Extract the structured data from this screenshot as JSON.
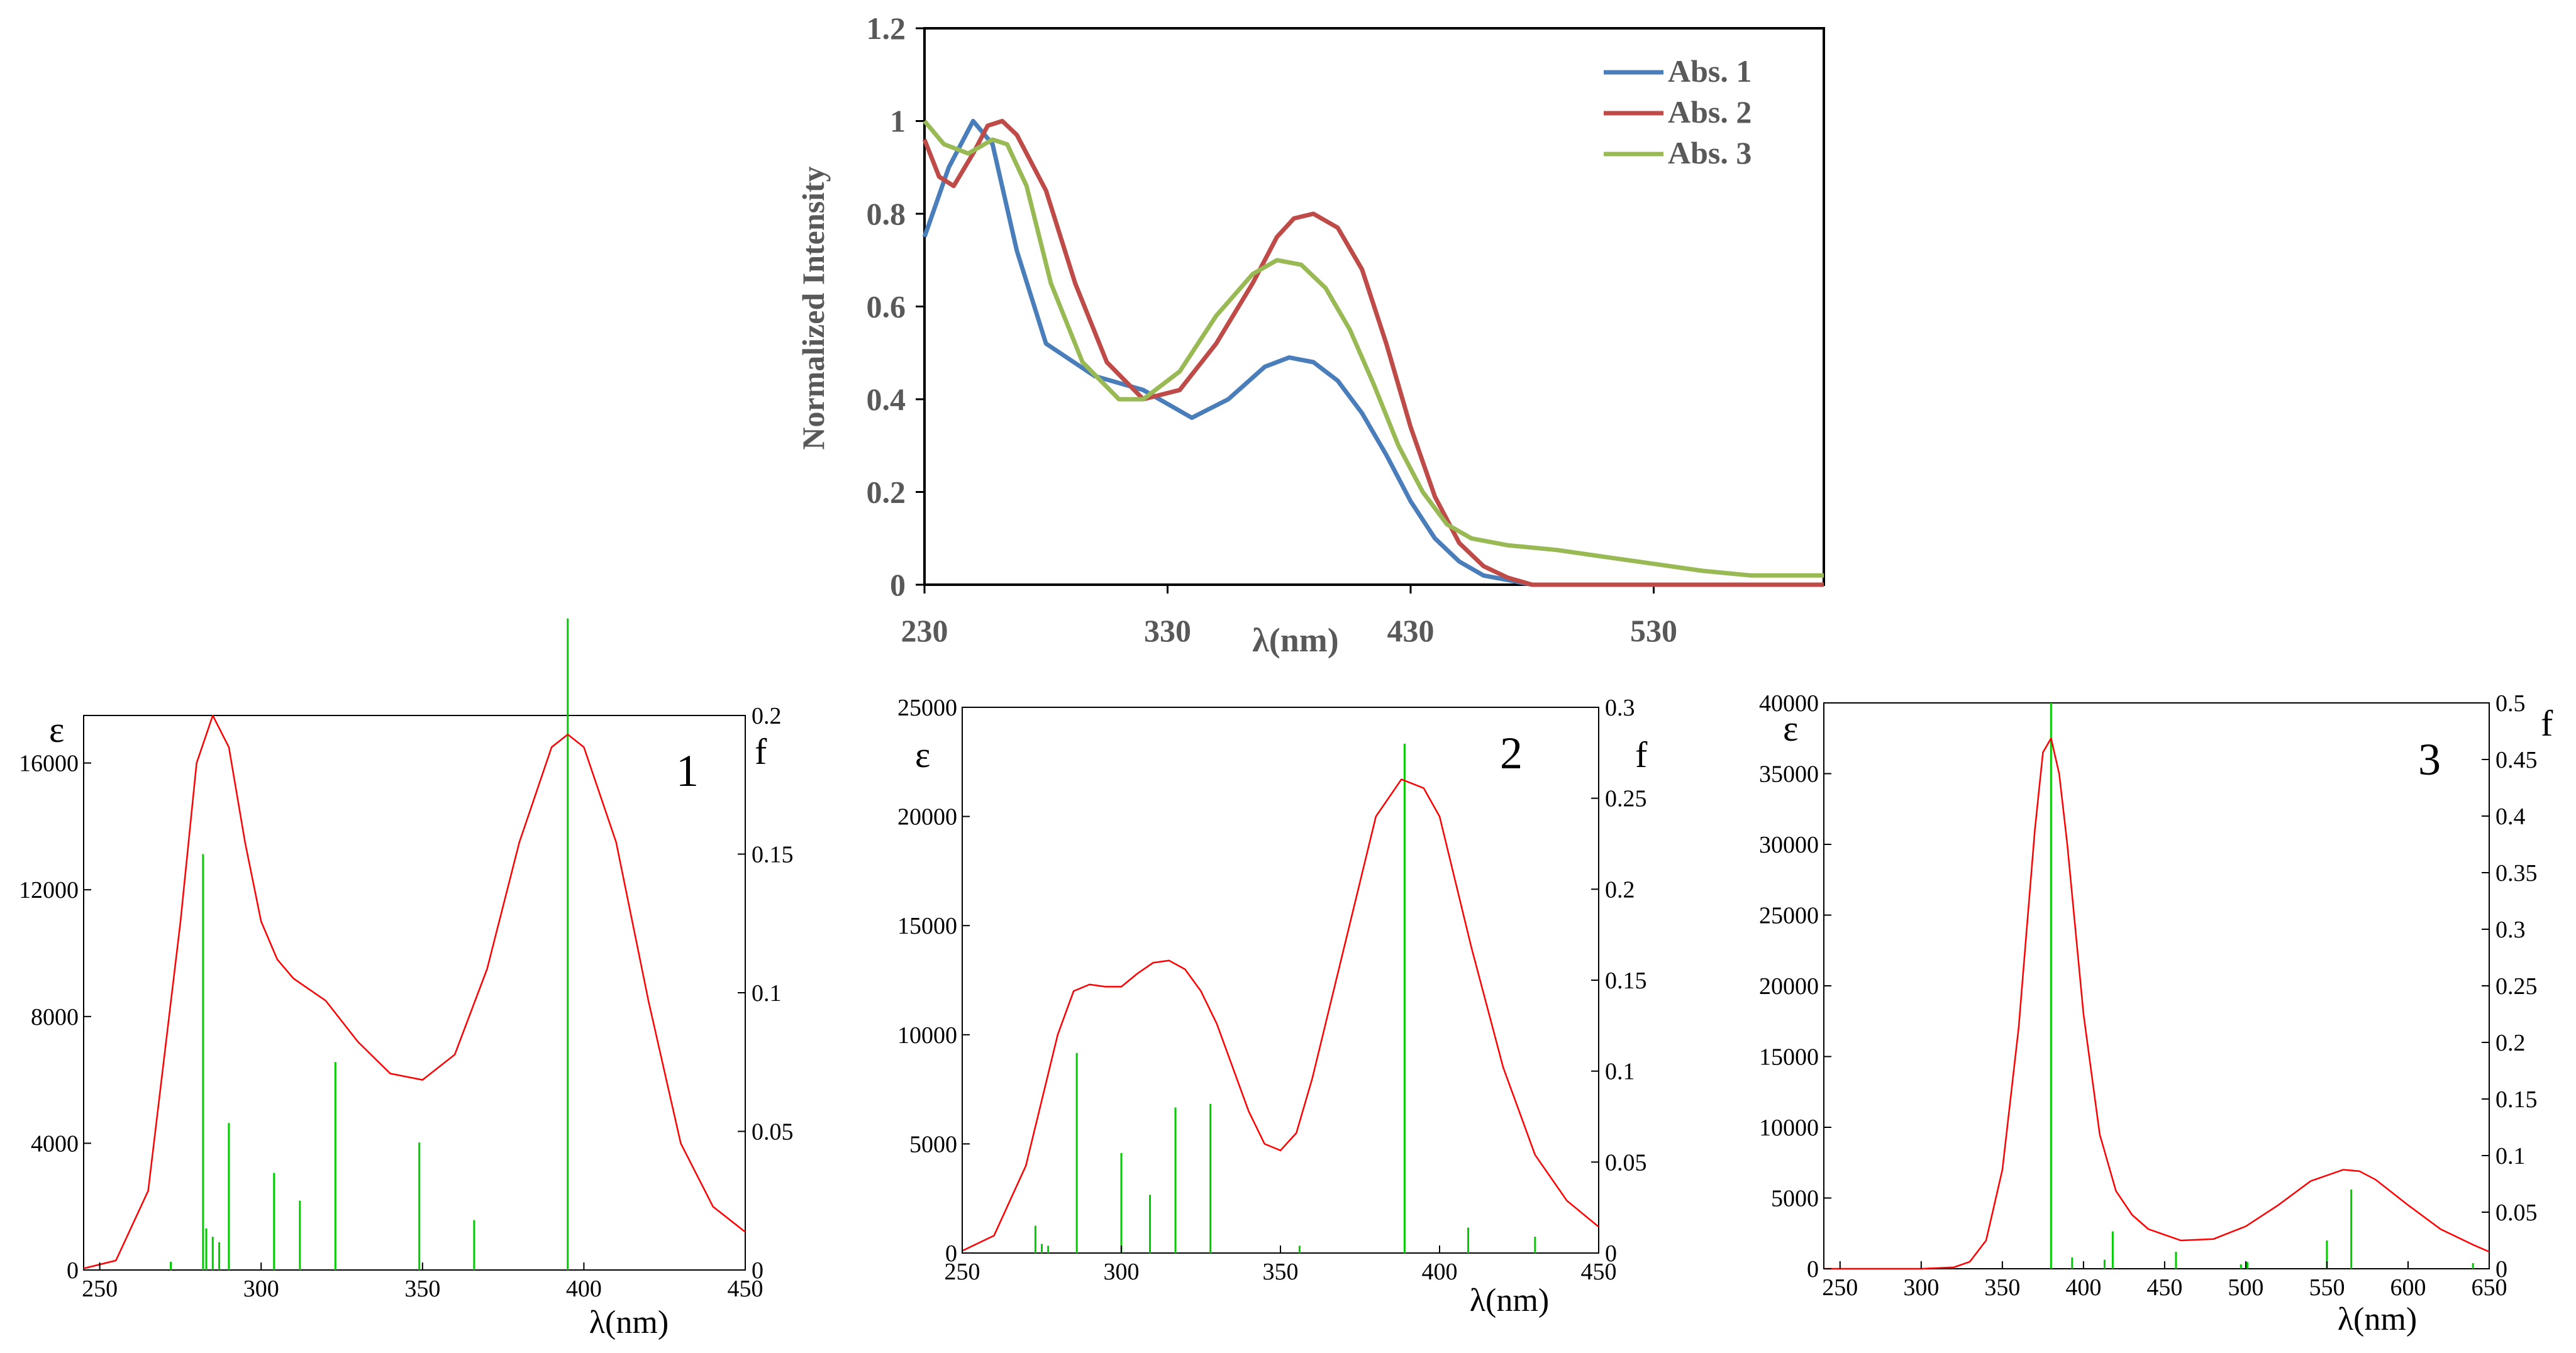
{
  "colors": {
    "abs1": "#4a7ebb",
    "abs2": "#be4b48",
    "abs3": "#98b954",
    "curve": "#ff0000",
    "bars": "#00cc00",
    "axis": "#000000",
    "label": "#595959"
  },
  "chart_data": [
    {
      "id": "top",
      "type": "line",
      "xlabel": "λ(nm)",
      "ylabel": "Normalized Intensity",
      "xlim": [
        230,
        600
      ],
      "ylim": [
        0,
        1.2
      ],
      "xticks": [
        "230",
        "330",
        "430",
        "530"
      ],
      "yticks": [
        "0",
        "0.2",
        "0.4",
        "0.6",
        "0.8",
        "1",
        "1.2"
      ],
      "legend": {
        "position": "top-right",
        "entries": [
          "Abs. 1",
          "Abs. 2",
          "Abs. 3"
        ]
      },
      "series": [
        {
          "name": "Abs. 1",
          "x": [
            230,
            240,
            250,
            258,
            268,
            280,
            300,
            320,
            340,
            355,
            370,
            380,
            390,
            400,
            410,
            420,
            430,
            440,
            450,
            460,
            470,
            480,
            500,
            530,
            560,
            600
          ],
          "y": [
            0.75,
            0.9,
            1.0,
            0.95,
            0.72,
            0.52,
            0.45,
            0.42,
            0.36,
            0.4,
            0.47,
            0.49,
            0.48,
            0.44,
            0.37,
            0.28,
            0.18,
            0.1,
            0.05,
            0.02,
            0.01,
            0.0,
            0.0,
            0.0,
            0.0,
            0.0
          ]
        },
        {
          "name": "Abs. 2",
          "x": [
            230,
            236,
            242,
            250,
            256,
            262,
            268,
            280,
            292,
            305,
            320,
            335,
            350,
            365,
            375,
            382,
            390,
            400,
            410,
            420,
            430,
            440,
            450,
            460,
            470,
            480,
            500,
            530,
            560,
            600
          ],
          "y": [
            0.96,
            0.88,
            0.86,
            0.93,
            0.99,
            1.0,
            0.97,
            0.85,
            0.65,
            0.48,
            0.4,
            0.42,
            0.52,
            0.65,
            0.75,
            0.79,
            0.8,
            0.77,
            0.68,
            0.52,
            0.34,
            0.19,
            0.09,
            0.04,
            0.015,
            0.0,
            0.0,
            0.0,
            0.0,
            0.0
          ]
        },
        {
          "name": "Abs. 3",
          "x": [
            230,
            238,
            248,
            258,
            264,
            272,
            282,
            295,
            310,
            320,
            335,
            350,
            365,
            375,
            385,
            395,
            405,
            415,
            425,
            435,
            445,
            455,
            470,
            490,
            510,
            530,
            550,
            570,
            600
          ],
          "y": [
            1.0,
            0.95,
            0.93,
            0.96,
            0.95,
            0.86,
            0.65,
            0.48,
            0.4,
            0.4,
            0.46,
            0.58,
            0.67,
            0.7,
            0.69,
            0.64,
            0.55,
            0.43,
            0.3,
            0.2,
            0.13,
            0.1,
            0.085,
            0.075,
            0.06,
            0.045,
            0.03,
            0.02,
            0.02
          ]
        }
      ]
    },
    {
      "id": "p1",
      "type": "line",
      "panel_label": "1",
      "xlabel": "λ(nm)",
      "ylabel_left": "ε",
      "ylabel_right": "f",
      "xlim": [
        245,
        450
      ],
      "ylim_left": [
        0,
        17500
      ],
      "ylim_right": [
        0,
        0.2
      ],
      "xticks": [
        "250",
        "300",
        "350",
        "400",
        "450"
      ],
      "yticks_left": [
        "0",
        "4000",
        "8000",
        "12000",
        "16000"
      ],
      "yticks_right": [
        "0",
        "0.05",
        "0.1",
        "0.15",
        "0.2"
      ],
      "curve": {
        "x": [
          245,
          255,
          265,
          275,
          280,
          285,
          290,
          295,
          300,
          305,
          310,
          320,
          330,
          340,
          350,
          360,
          370,
          380,
          390,
          395,
          400,
          410,
          420,
          430,
          440,
          450
        ],
        "y": [
          50,
          300,
          2500,
          11000,
          16000,
          17500,
          16500,
          13500,
          11000,
          9800,
          9200,
          8500,
          7200,
          6200,
          6000,
          6800,
          9500,
          13500,
          16500,
          16900,
          16500,
          13500,
          8500,
          4000,
          2000,
          1200
        ]
      },
      "bars": {
        "x": [
          272,
          282,
          283,
          285,
          287,
          290,
          304,
          312,
          323,
          349,
          366,
          395
        ],
        "f": [
          0.003,
          0.15,
          0.015,
          0.012,
          0.01,
          0.053,
          0.035,
          0.025,
          0.075,
          0.046,
          0.018,
          0.235
        ]
      }
    },
    {
      "id": "p2",
      "type": "line",
      "panel_label": "2",
      "xlabel": "λ(nm)",
      "ylabel_left": "ε",
      "ylabel_right": "f",
      "xlim": [
        250,
        450
      ],
      "ylim_left": [
        0,
        25000
      ],
      "ylim_right": [
        0,
        0.3
      ],
      "xticks": [
        "250",
        "300",
        "350",
        "400",
        "450"
      ],
      "yticks_left": [
        "0",
        "5000",
        "10000",
        "15000",
        "20000",
        "25000"
      ],
      "yticks_right": [
        "0",
        "0.05",
        "0.1",
        "0.15",
        "0.2",
        "0.25",
        "0.3"
      ],
      "curve": {
        "x": [
          250,
          260,
          270,
          280,
          285,
          290,
          295,
          300,
          305,
          310,
          315,
          320,
          325,
          330,
          340,
          345,
          350,
          355,
          360,
          370,
          380,
          388,
          395,
          400,
          410,
          420,
          430,
          440,
          450
        ],
        "y": [
          100,
          800,
          4000,
          10000,
          12000,
          12300,
          12200,
          12200,
          12800,
          13300,
          13400,
          13000,
          12000,
          10500,
          6500,
          5000,
          4700,
          5500,
          8000,
          14000,
          20000,
          21700,
          21300,
          20000,
          14000,
          8500,
          4500,
          2400,
          1200
        ]
      },
      "bars": {
        "x": [
          273,
          275,
          277,
          286,
          300,
          309,
          317,
          328,
          356,
          389,
          409,
          430
        ],
        "f": [
          0.015,
          0.005,
          0.004,
          0.11,
          0.055,
          0.032,
          0.08,
          0.082,
          0.004,
          0.28,
          0.014,
          0.009
        ]
      }
    },
    {
      "id": "p3",
      "type": "line",
      "panel_label": "3",
      "xlabel": "λ(nm)",
      "ylabel_left": "ε",
      "ylabel_right": "f",
      "xlim": [
        240,
        650
      ],
      "ylim_left": [
        0,
        40000
      ],
      "ylim_right": [
        0,
        0.5
      ],
      "xticks": [
        "250",
        "300",
        "350",
        "400",
        "450",
        "500",
        "550",
        "600",
        "650"
      ],
      "yticks_left": [
        "0",
        "5000",
        "10000",
        "15000",
        "20000",
        "25000",
        "30000",
        "35000",
        "40000"
      ],
      "yticks_right": [
        "0",
        "0.05",
        "0.1",
        "0.15",
        "0.2",
        "0.25",
        "0.3",
        "0.35",
        "0.4",
        "0.45",
        "0.5"
      ],
      "curve": {
        "x": [
          240,
          300,
          320,
          330,
          340,
          350,
          360,
          370,
          375,
          380,
          385,
          390,
          400,
          410,
          420,
          430,
          440,
          460,
          480,
          500,
          520,
          540,
          560,
          570,
          580,
          600,
          620,
          640,
          650
        ],
        "y": [
          0,
          0,
          100,
          500,
          2000,
          7000,
          17000,
          31000,
          36500,
          37500,
          35000,
          30000,
          18000,
          9500,
          5500,
          3800,
          2800,
          2000,
          2100,
          3000,
          4500,
          6200,
          7000,
          6900,
          6300,
          4500,
          2800,
          1700,
          1200
        ]
      },
      "bars": {
        "x": [
          380,
          393,
          413,
          418,
          457,
          497,
          501,
          550,
          565,
          640
        ],
        "f": [
          0.5,
          0.01,
          0.008,
          0.033,
          0.015,
          0.004,
          0.006,
          0.025,
          0.07,
          0.005
        ]
      }
    }
  ]
}
